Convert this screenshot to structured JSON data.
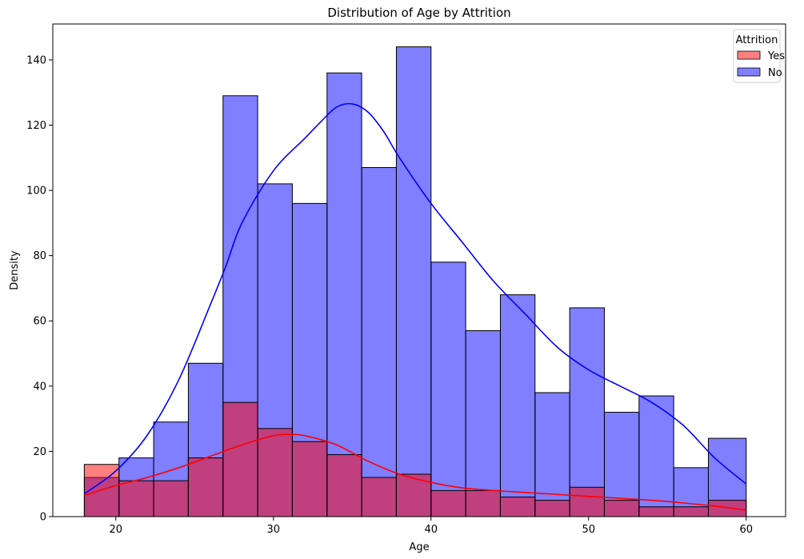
{
  "chart_data": {
    "type": "bar",
    "title": "Distribution of Age by Attrition",
    "xlabel": "Age",
    "ylabel": "Density",
    "xlim": [
      16,
      62.5
    ],
    "ylim": [
      0,
      151
    ],
    "xticks": [
      20,
      30,
      40,
      50,
      60
    ],
    "yticks": [
      0,
      20,
      40,
      60,
      80,
      100,
      120,
      140
    ],
    "bin_edges": [
      18,
      20.2,
      22.4,
      24.6,
      26.8,
      29.0,
      31.2,
      33.4,
      35.6,
      37.8,
      40.0,
      42.2,
      44.4,
      46.6,
      48.8,
      51.0,
      53.2,
      55.4,
      57.6,
      60
    ],
    "grid": false,
    "legend": {
      "title": "Attrition",
      "placement": "top-right"
    },
    "series": [
      {
        "name": "Yes",
        "color": "#ff0000",
        "fill": "#ff7f7f",
        "values": [
          16,
          11,
          11,
          18,
          35,
          27,
          23,
          19,
          12,
          13,
          8,
          8,
          6,
          5,
          9,
          5,
          3,
          3,
          5
        ],
        "kde": {
          "x": [
            18,
            20,
            22,
            24,
            26,
            28,
            30,
            31,
            32,
            34,
            36,
            38,
            40,
            42,
            44,
            46,
            48,
            50,
            52,
            54,
            56,
            58,
            60
          ],
          "y": [
            6.5,
            9.5,
            12,
            15,
            18.5,
            22,
            24.8,
            25.2,
            24.8,
            22,
            17,
            13,
            10.5,
            8.8,
            8,
            7.4,
            6.8,
            6.2,
            5.6,
            5,
            4.2,
            3.2,
            2
          ]
        }
      },
      {
        "name": "No",
        "color": "#0000ff",
        "fill": "#7f7fff",
        "values": [
          12,
          18,
          29,
          47,
          129,
          102,
          96,
          136,
          107,
          144,
          78,
          57,
          68,
          38,
          64,
          32,
          37,
          15,
          24
        ],
        "kde": {
          "x": [
            18,
            20,
            22,
            24,
            26,
            27,
            28,
            30,
            32,
            33,
            34,
            35,
            36,
            37,
            38,
            40,
            42,
            44,
            46,
            48,
            50,
            52,
            54,
            56,
            58,
            60
          ],
          "y": [
            7,
            14,
            25,
            42,
            65,
            77,
            90,
            106,
            116,
            121,
            125.5,
            126.5,
            124,
            118,
            110,
            96,
            84,
            72,
            62,
            52,
            45,
            40,
            35,
            28,
            18,
            10
          ]
        }
      }
    ]
  }
}
